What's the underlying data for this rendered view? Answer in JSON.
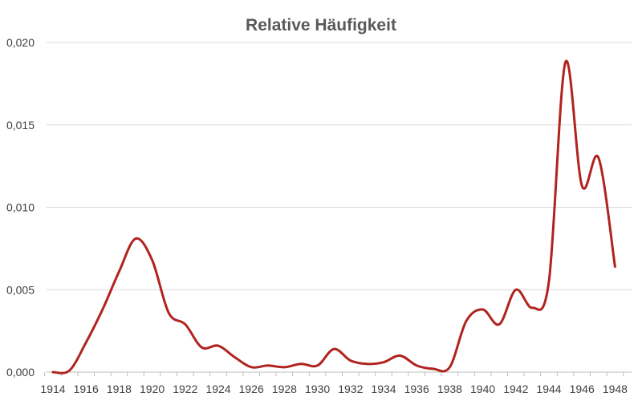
{
  "chart_data": {
    "type": "line",
    "title": "Relative Häufigkeit",
    "xlabel": "",
    "ylabel": "",
    "x": [
      1914,
      1915,
      1916,
      1917,
      1918,
      1919,
      1920,
      1921,
      1922,
      1923,
      1924,
      1925,
      1926,
      1927,
      1928,
      1929,
      1930,
      1931,
      1932,
      1933,
      1934,
      1935,
      1936,
      1937,
      1938,
      1939,
      1940,
      1941,
      1942,
      1943,
      1944,
      1945,
      1946,
      1947,
      1948
    ],
    "series": [
      {
        "name": "",
        "color": "#b0231f",
        "values": [
          0.0,
          0.0001,
          0.0018,
          0.0038,
          0.0061,
          0.0081,
          0.0068,
          0.0036,
          0.0029,
          0.0015,
          0.0016,
          0.0009,
          0.0003,
          0.0004,
          0.0003,
          0.0005,
          0.0004,
          0.0014,
          0.0007,
          0.0005,
          0.0006,
          0.001,
          0.0004,
          0.0002,
          0.0003,
          0.0031,
          0.0038,
          0.0029,
          0.005,
          0.0039,
          0.0055,
          0.0188,
          0.0113,
          0.013,
          0.0064
        ]
      }
    ],
    "ylim": [
      0,
      0.02
    ],
    "yticks": [
      0,
      0.005,
      0.01,
      0.015,
      0.02
    ],
    "ytick_labels": [
      "0,000",
      "0,005",
      "0,010",
      "0,015",
      "0,020"
    ],
    "xtick_labels": [
      "1914",
      "1916",
      "1918",
      "1920",
      "1922",
      "1924",
      "1926",
      "1928",
      "1930",
      "1932",
      "1934",
      "1936",
      "1938",
      "1940",
      "1942",
      "1944",
      "1946",
      "1948"
    ],
    "grid": true,
    "legend": "none",
    "colors": {
      "grid": "#d9d9d9",
      "axis": "#bfbfbf",
      "title": "#595959",
      "labels": "#404040"
    }
  }
}
